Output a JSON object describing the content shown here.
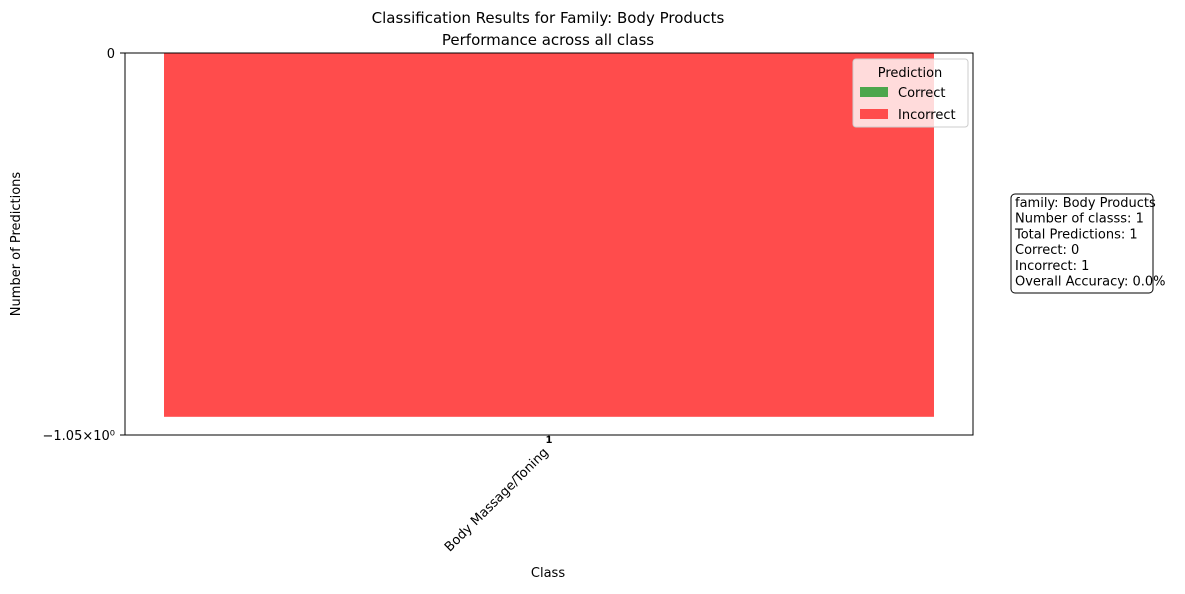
{
  "chart_data": {
    "type": "bar",
    "title": "Classification Results for Family: Body Products",
    "subtitle": "Performance across all class",
    "x_label": "Class",
    "y_label": "Number of Predictions",
    "categories": [
      "Body Massage/Toning"
    ],
    "series": [
      {
        "name": "Correct",
        "color": "#4ca64c",
        "values": [
          0
        ]
      },
      {
        "name": "Incorrect",
        "color": "#ff4c4c",
        "values": [
          -1
        ]
      }
    ],
    "totals": [
      1
    ],
    "stacked": true,
    "ylim": [
      -1.05,
      0
    ],
    "yticks": [
      {
        "value": -1.05,
        "label": "−1.05×10⁰"
      },
      0
    ],
    "legend_title": "Prediction",
    "legend_position": "upper right",
    "info_box": [
      "family: Body Products",
      "Number of classs: 1",
      "Total Predictions: 1",
      "Correct: 0",
      "Incorrect: 1",
      "Overall Accuracy: 0.0%"
    ]
  }
}
